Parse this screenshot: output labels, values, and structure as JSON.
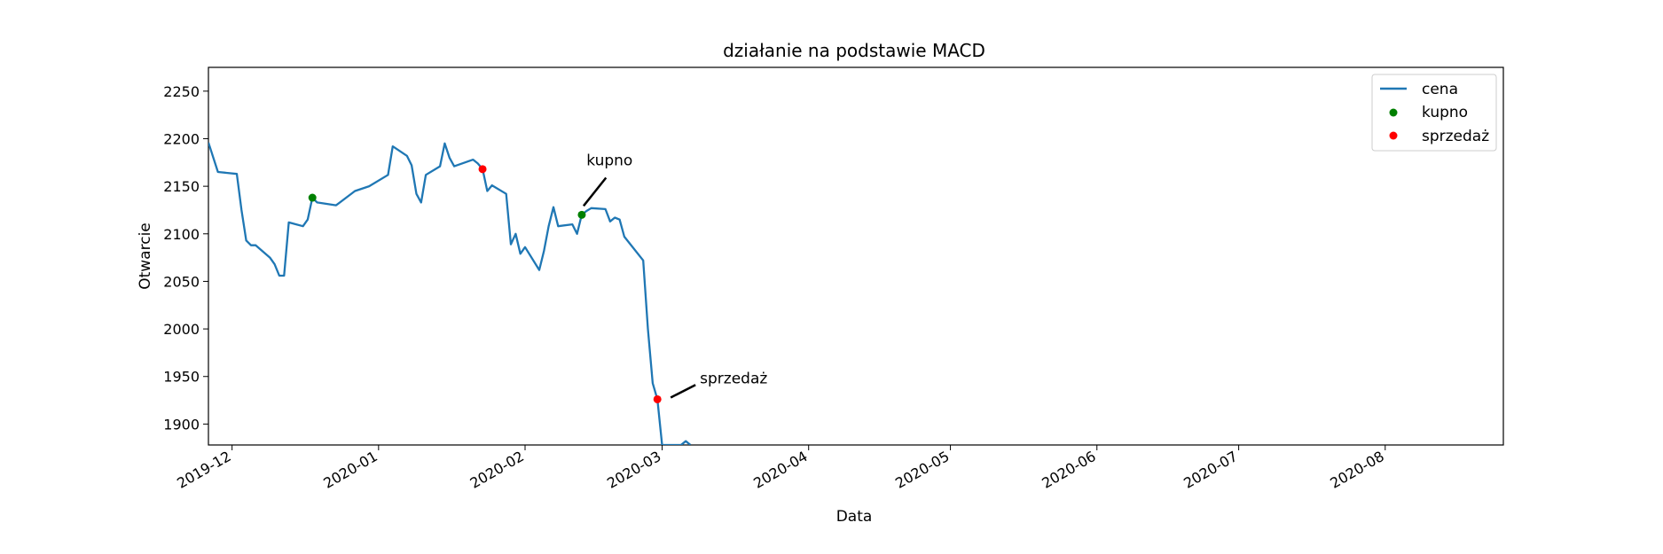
{
  "chart_data": {
    "type": "line",
    "title": "działanie na podstawie MACD",
    "xlabel": "Data",
    "ylabel": "Otwarcie",
    "xlim": [
      "2019-11-26",
      "2020-08-26"
    ],
    "ylim": [
      1878,
      2275
    ],
    "xticks": [
      "2019-12",
      "2020-01",
      "2020-02",
      "2020-03",
      "2020-04",
      "2020-05",
      "2020-06",
      "2020-07",
      "2020-08"
    ],
    "xtick_dates": [
      "2019-12-01",
      "2020-01-01",
      "2020-02-01",
      "2020-03-01",
      "2020-04-01",
      "2020-05-01",
      "2020-06-01",
      "2020-07-01",
      "2020-08-01"
    ],
    "yticks": [
      1900,
      1950,
      2000,
      2050,
      2100,
      2150,
      2200,
      2250
    ],
    "grid": false,
    "legend_position": "top-right",
    "colors": {
      "price": "#1f77b4",
      "buy": "#008000",
      "sell": "#ff0000"
    },
    "series": [
      {
        "name": "cena",
        "points": [
          [
            "2019-11-26",
            2196
          ],
          [
            "2019-11-28",
            2165
          ],
          [
            "2019-12-02",
            2163
          ],
          [
            "2019-12-03",
            2125
          ],
          [
            "2019-12-04",
            2093
          ],
          [
            "2019-12-05",
            2088
          ],
          [
            "2019-12-06",
            2088
          ],
          [
            "2019-12-09",
            2075
          ],
          [
            "2019-12-10",
            2068
          ],
          [
            "2019-12-11",
            2056
          ],
          [
            "2019-12-12",
            2056
          ],
          [
            "2019-12-13",
            2112
          ],
          [
            "2019-12-16",
            2108
          ],
          [
            "2019-12-17",
            2115
          ],
          [
            "2019-12-18",
            2138
          ],
          [
            "2019-12-19",
            2133
          ],
          [
            "2019-12-23",
            2130
          ],
          [
            "2019-12-27",
            2145
          ],
          [
            "2019-12-30",
            2150
          ],
          [
            "2020-01-03",
            2162
          ],
          [
            "2020-01-04",
            2192
          ],
          [
            "2020-01-07",
            2182
          ],
          [
            "2020-01-08",
            2172
          ],
          [
            "2020-01-09",
            2142
          ],
          [
            "2020-01-10",
            2133
          ],
          [
            "2020-01-11",
            2162
          ],
          [
            "2020-01-14",
            2171
          ],
          [
            "2020-01-15",
            2195
          ],
          [
            "2020-01-16",
            2180
          ],
          [
            "2020-01-17",
            2171
          ],
          [
            "2020-01-21",
            2178
          ],
          [
            "2020-01-22",
            2174
          ],
          [
            "2020-01-23",
            2168
          ],
          [
            "2020-01-24",
            2145
          ],
          [
            "2020-01-25",
            2151
          ],
          [
            "2020-01-28",
            2142
          ],
          [
            "2020-01-29",
            2089
          ],
          [
            "2020-01-30",
            2100
          ],
          [
            "2020-01-31",
            2079
          ],
          [
            "2020-02-01",
            2086
          ],
          [
            "2020-02-04",
            2062
          ],
          [
            "2020-02-05",
            2082
          ],
          [
            "2020-02-06",
            2108
          ],
          [
            "2020-02-07",
            2128
          ],
          [
            "2020-02-08",
            2108
          ],
          [
            "2020-02-11",
            2110
          ],
          [
            "2020-02-12",
            2100
          ],
          [
            "2020-02-13",
            2120
          ],
          [
            "2020-02-14",
            2124
          ],
          [
            "2020-02-15",
            2127
          ],
          [
            "2020-02-18",
            2126
          ],
          [
            "2020-02-19",
            2113
          ],
          [
            "2020-02-20",
            2117
          ],
          [
            "2020-02-21",
            2115
          ],
          [
            "2020-02-22",
            2097
          ],
          [
            "2020-02-26",
            2072
          ],
          [
            "2020-02-27",
            2000
          ],
          [
            "2020-02-28",
            1943
          ],
          [
            "2020-02-29",
            1926
          ],
          [
            "2020-03-01",
            1878
          ],
          [
            "2020-03-05",
            1878
          ],
          [
            "2020-03-06",
            1882
          ],
          [
            "2020-03-07",
            1878
          ]
        ]
      }
    ],
    "buy_points": {
      "name": "kupno",
      "points": [
        [
          "2019-12-18",
          2138
        ],
        [
          "2020-02-13",
          2120
        ]
      ]
    },
    "sell_points": {
      "name": "sprzedaż",
      "points": [
        [
          "2020-01-23",
          2168
        ],
        [
          "2020-02-29",
          1926
        ]
      ]
    },
    "annotations": [
      {
        "text": "kupno",
        "point": [
          "2020-02-13",
          2120
        ],
        "text_pos": [
          "2020-02-14",
          2172
        ]
      },
      {
        "text": "sprzedaż",
        "point": [
          "2020-02-29",
          1926
        ],
        "text_pos": [
          "2020-03-09",
          1943
        ]
      }
    ]
  }
}
